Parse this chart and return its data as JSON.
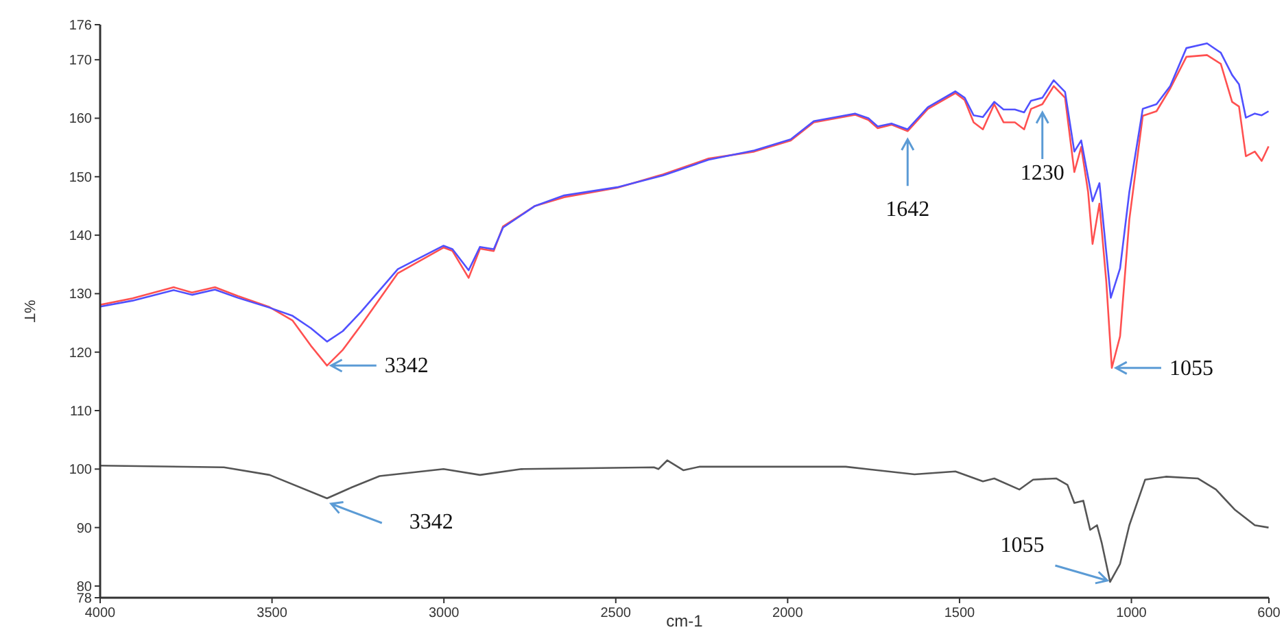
{
  "chart_data": {
    "type": "line",
    "xlabel": "cm-1",
    "ylabel": "%T",
    "xlim": [
      4000,
      600
    ],
    "xticks": [
      4000,
      3500,
      3000,
      2500,
      2000,
      1500,
      1000,
      600
    ],
    "ylim": [
      78,
      176
    ],
    "yticks": [
      78,
      80,
      90,
      100,
      110,
      120,
      130,
      140,
      150,
      160,
      170,
      176
    ],
    "grid": false,
    "marker": "none",
    "line_style": "solid",
    "series": [
      {
        "color": "#ff5050",
        "x": [
          3999,
          3906,
          3786,
          3733,
          3666,
          3600,
          3507,
          3440,
          3387,
          3340,
          3294,
          3241,
          3134,
          3001,
          2975,
          2928,
          2895,
          2855,
          2828,
          2735,
          2650,
          2496,
          2363,
          2230,
          2097,
          1991,
          1924,
          1804,
          1765,
          1738,
          1698,
          1651,
          1592,
          1512,
          1485,
          1459,
          1432,
          1399,
          1372,
          1339,
          1312,
          1292,
          1259,
          1226,
          1193,
          1166,
          1146,
          1126,
          1113,
          1093,
          1073,
          1057,
          1033,
          1006,
          967,
          927,
          887,
          840,
          780,
          740,
          707,
          687,
          667,
          641,
          621,
          601
        ],
        "values": [
          128.1,
          129.2,
          131.1,
          130.2,
          131.1,
          129.6,
          127.7,
          125.4,
          121.1,
          117.7,
          120.4,
          124.6,
          133.5,
          137.9,
          137.3,
          132.7,
          137.7,
          137.3,
          141.5,
          145,
          146.5,
          148.1,
          150.4,
          153.1,
          154.3,
          156.2,
          159.3,
          160.6,
          159.7,
          158.3,
          158.9,
          157.8,
          161.6,
          164.3,
          163.1,
          159.3,
          158.1,
          162.4,
          159.3,
          159.3,
          158.1,
          161.6,
          162.4,
          165.5,
          163.5,
          150.8,
          155.1,
          147.4,
          138.5,
          145.4,
          132,
          117.3,
          122.7,
          142.7,
          160.4,
          161.2,
          165.1,
          170.5,
          170.8,
          169.3,
          162.8,
          162,
          153.5,
          154.3,
          152.7,
          155.2
        ]
      },
      {
        "color": "#5050ff",
        "x": [
          3999,
          3906,
          3786,
          3733,
          3666,
          3600,
          3507,
          3440,
          3387,
          3340,
          3294,
          3241,
          3134,
          3001,
          2975,
          2928,
          2895,
          2855,
          2828,
          2735,
          2650,
          2496,
          2363,
          2230,
          2097,
          1991,
          1924,
          1804,
          1765,
          1738,
          1698,
          1651,
          1592,
          1512,
          1485,
          1459,
          1432,
          1399,
          1372,
          1339,
          1312,
          1292,
          1259,
          1226,
          1193,
          1166,
          1146,
          1113,
          1093,
          1060,
          1033,
          1006,
          967,
          927,
          887,
          840,
          780,
          740,
          707,
          687,
          667,
          641,
          621,
          601
        ],
        "values": [
          127.8,
          128.8,
          130.6,
          129.8,
          130.7,
          129.3,
          127.6,
          126.2,
          124.1,
          121.8,
          123.6,
          126.9,
          134.2,
          138.2,
          137.6,
          134,
          138,
          137.6,
          141.3,
          145,
          146.8,
          148.2,
          150.2,
          152.9,
          154.5,
          156.4,
          159.5,
          160.8,
          160,
          158.6,
          159.1,
          158.1,
          161.9,
          164.6,
          163.5,
          160.5,
          160.2,
          162.8,
          161.5,
          161.5,
          161,
          163,
          163.5,
          166.5,
          164.5,
          154.3,
          156.2,
          145.8,
          148.9,
          129.3,
          134.3,
          147.4,
          161.6,
          162.4,
          165.5,
          172,
          172.8,
          171.2,
          167.4,
          165.8,
          160.1,
          160.8,
          160.5,
          161.2
        ]
      },
      {
        "color": "#555555",
        "x": [
          3999,
          3640,
          3507,
          3340,
          3267,
          3187,
          3001,
          2895,
          2775,
          2389,
          2376,
          2350,
          2303,
          2257,
          1831,
          1631,
          1512,
          1432,
          1399,
          1326,
          1286,
          1219,
          1186,
          1166,
          1140,
          1120,
          1100,
          1086,
          1062,
          1033,
          1006,
          960,
          900,
          807,
          754,
          700,
          641,
          601
        ],
        "values": [
          100.6,
          100.3,
          99,
          95,
          96.9,
          98.8,
          100,
          99,
          100,
          100.3,
          100,
          101.5,
          99.8,
          100.4,
          100.4,
          99.1,
          99.6,
          97.9,
          98.4,
          96.5,
          98.2,
          98.4,
          97.3,
          94.2,
          94.6,
          89.6,
          90.4,
          87.3,
          80.7,
          83.8,
          90.4,
          98.2,
          98.7,
          98.4,
          96.5,
          93.1,
          90.4,
          90
        ]
      }
    ],
    "annotations": [
      {
        "text": "3342",
        "x": 3340,
        "y": 117.7
      },
      {
        "text": "1642",
        "x": 1651,
        "y": 157.8
      },
      {
        "text": "1230",
        "x": 1259,
        "y": 162.4
      },
      {
        "text": "1055",
        "x": 1057,
        "y": 117.3
      },
      {
        "text": "3342",
        "x": 3340,
        "y": 95
      },
      {
        "text": "1055",
        "x": 1062,
        "y": 80.7
      }
    ]
  }
}
